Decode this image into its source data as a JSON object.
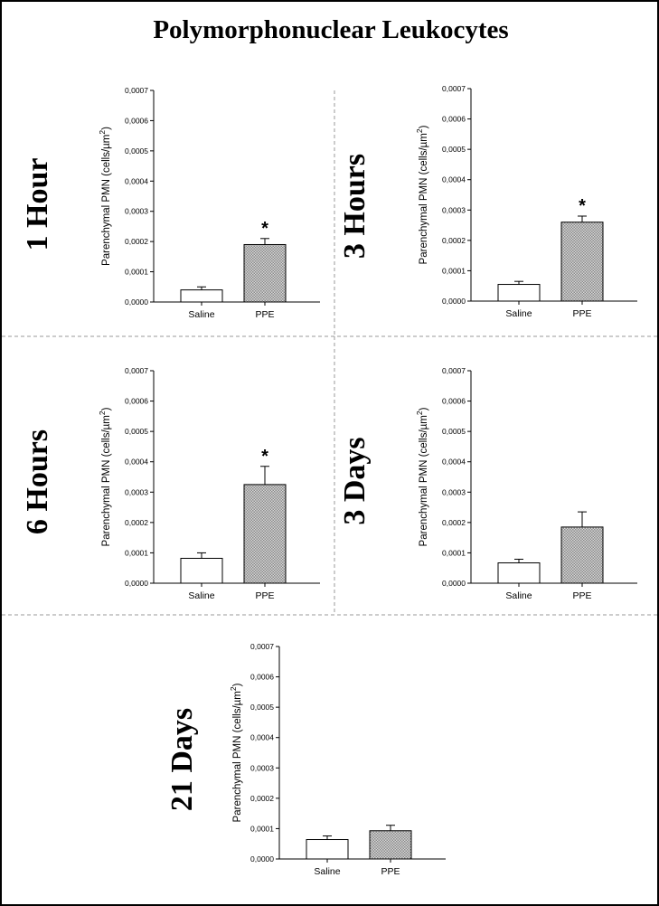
{
  "figure": {
    "title": "Polymorphonuclear Leukocytes"
  },
  "colors": {
    "frame": "#000000",
    "separator": "#9a9a9a",
    "ppe_fill": "#a8a8a8",
    "saline_fill": "#ffffff"
  },
  "chart_data": [
    {
      "type": "bar",
      "panel": "1 Hour",
      "categories": [
        "Saline",
        "PPE"
      ],
      "values": [
        4e-05,
        0.00019
      ],
      "errors": [
        1e-05,
        2e-05
      ],
      "significant": [
        false,
        true
      ],
      "significance_marker": "*",
      "ylabel": "Parenchymal PMN (cells/µm",
      "ylabel_sup": "2",
      "ylabel_close": ")",
      "ylim": [
        0,
        0.0007
      ],
      "yticks": [
        "0,0000",
        "0,0001",
        "0,0002",
        "0,0003",
        "0,0004",
        "0,0005",
        "0,0006",
        "0,0007"
      ],
      "grid": false
    },
    {
      "type": "bar",
      "panel": "3 Hours",
      "categories": [
        "Saline",
        "PPE"
      ],
      "values": [
        5.5e-05,
        0.00026
      ],
      "errors": [
        1e-05,
        2e-05
      ],
      "significant": [
        false,
        true
      ],
      "significance_marker": "*",
      "ylabel": "Parenchymal PMN (cells/µm",
      "ylabel_sup": "2",
      "ylabel_close": ")",
      "ylim": [
        0,
        0.0007
      ],
      "yticks": [
        "0,0000",
        "0,0001",
        "0,0002",
        "0,0003",
        "0,0004",
        "0,0005",
        "0,0006",
        "0,0007"
      ],
      "grid": false
    },
    {
      "type": "bar",
      "panel": "6 Hours",
      "categories": [
        "Saline",
        "PPE"
      ],
      "values": [
        8.2e-05,
        0.000325
      ],
      "errors": [
        1.8e-05,
        6e-05
      ],
      "significant": [
        false,
        true
      ],
      "significance_marker": "*",
      "ylabel": "Parenchymal PMN (cells/µm",
      "ylabel_sup": "2",
      "ylabel_close": ")",
      "ylim": [
        0,
        0.0007
      ],
      "yticks": [
        "0,0000",
        "0,0001",
        "0,0002",
        "0,0003",
        "0,0004",
        "0,0005",
        "0,0006",
        "0,0007"
      ],
      "grid": false
    },
    {
      "type": "bar",
      "panel": "3 Days",
      "categories": [
        "Saline",
        "PPE"
      ],
      "values": [
        6.7e-05,
        0.000185
      ],
      "errors": [
        1.2e-05,
        5e-05
      ],
      "significant": [
        false,
        false
      ],
      "significance_marker": "",
      "ylabel": "Parenchymal PMN (cells/µm",
      "ylabel_sup": "2",
      "ylabel_close": ")",
      "ylim": [
        0,
        0.0007
      ],
      "yticks": [
        "0,0000",
        "0,0001",
        "0,0002",
        "0,0003",
        "0,0004",
        "0,0005",
        "0,0006",
        "0,0007"
      ],
      "grid": false
    },
    {
      "type": "bar",
      "panel": "21 Days",
      "categories": [
        "Saline",
        "PPE"
      ],
      "values": [
        6.4e-05,
        9.3e-05
      ],
      "errors": [
        1.2e-05,
        1.8e-05
      ],
      "significant": [
        false,
        false
      ],
      "significance_marker": "",
      "ylabel": "Parenchymal PMN (cells/µm",
      "ylabel_sup": "2",
      "ylabel_close": ")",
      "ylim": [
        0,
        0.0007
      ],
      "yticks": [
        "0,0000",
        "0,0001",
        "0,0002",
        "0,0003",
        "0,0004",
        "0,0005",
        "0,0006",
        "0,0007"
      ],
      "grid": false
    }
  ]
}
